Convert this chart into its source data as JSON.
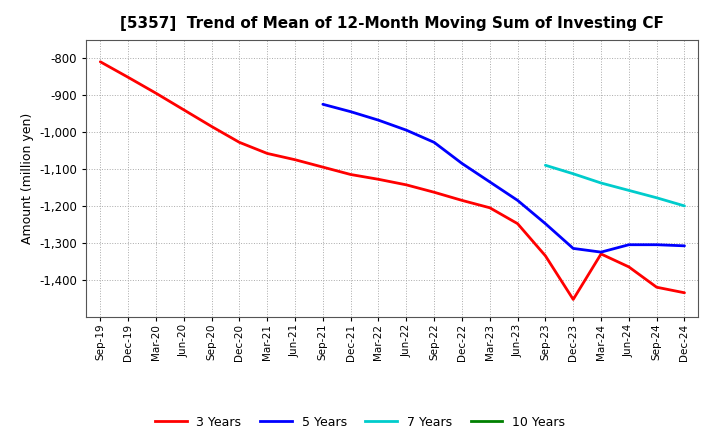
{
  "title": "[5357]  Trend of Mean of 12-Month Moving Sum of Investing CF",
  "ylabel": "Amount (million yen)",
  "background_color": "#ffffff",
  "grid_color": "#aaaaaa",
  "ylim": [
    -1500,
    -750
  ],
  "yticks": [
    -800,
    -900,
    -1000,
    -1100,
    -1200,
    -1300,
    -1400
  ],
  "x_labels": [
    "Sep-19",
    "Dec-19",
    "Mar-20",
    "Jun-20",
    "Sep-20",
    "Dec-20",
    "Mar-21",
    "Jun-21",
    "Sep-21",
    "Dec-21",
    "Mar-22",
    "Jun-22",
    "Sep-22",
    "Dec-22",
    "Mar-23",
    "Jun-23",
    "Sep-23",
    "Dec-23",
    "Mar-24",
    "Jun-24",
    "Sep-24",
    "Dec-24"
  ],
  "series": {
    "3 Years": {
      "color": "#ff0000",
      "x": [
        "Sep-19",
        "Dec-19",
        "Mar-20",
        "Jun-20",
        "Sep-20",
        "Dec-20",
        "Mar-21",
        "Jun-21",
        "Sep-21",
        "Dec-21",
        "Mar-22",
        "Jun-22",
        "Sep-22",
        "Dec-22",
        "Mar-23",
        "Jun-23",
        "Sep-23",
        "Dec-23",
        "Mar-24",
        "Jun-24",
        "Sep-24",
        "Dec-24"
      ],
      "y": [
        -810,
        -852,
        -895,
        -940,
        -985,
        -1028,
        -1058,
        -1075,
        -1095,
        -1115,
        -1128,
        -1143,
        -1163,
        -1185,
        -1205,
        -1248,
        -1335,
        -1453,
        -1330,
        -1365,
        -1420,
        -1435
      ]
    },
    "5 Years": {
      "color": "#0000ff",
      "x": [
        "Sep-21",
        "Dec-21",
        "Mar-22",
        "Jun-22",
        "Sep-22",
        "Dec-22",
        "Mar-23",
        "Jun-23",
        "Sep-23",
        "Dec-23",
        "Mar-24",
        "Jun-24",
        "Sep-24",
        "Dec-24"
      ],
      "y": [
        -925,
        -945,
        -968,
        -995,
        -1028,
        -1085,
        -1135,
        -1185,
        -1248,
        -1315,
        -1325,
        -1305,
        -1305,
        -1308
      ]
    },
    "7 Years": {
      "color": "#00cccc",
      "x": [
        "Sep-23",
        "Dec-23",
        "Mar-24",
        "Jun-24",
        "Sep-24",
        "Dec-24"
      ],
      "y": [
        -1090,
        -1113,
        -1138,
        -1158,
        -1178,
        -1200
      ]
    },
    "10 Years": {
      "color": "#008000",
      "x": [],
      "y": []
    }
  },
  "legend": {
    "3 Years": "#ff0000",
    "5 Years": "#0000ff",
    "7 Years": "#00cccc",
    "10 Years": "#008000"
  }
}
